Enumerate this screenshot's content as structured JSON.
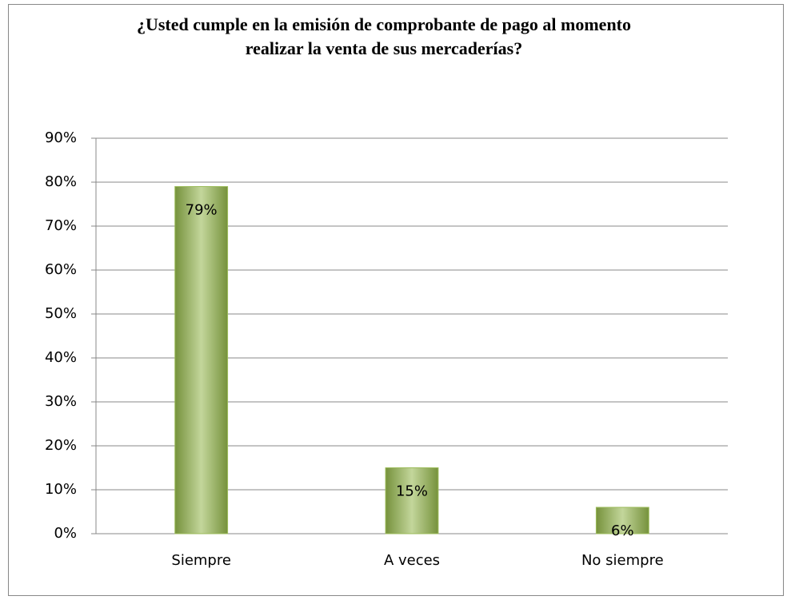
{
  "chart_data": {
    "type": "bar",
    "title": "¿Usted cumple en la emisión de comprobante de pago al momento realizar la venta de sus mercaderías?",
    "categories": [
      "Siempre",
      "A veces",
      "No siempre"
    ],
    "values": [
      79,
      15,
      6
    ],
    "value_labels": [
      "79%",
      "15%",
      "6%"
    ],
    "color": "#9bbb59",
    "ylim": [
      0,
      90
    ],
    "yticks": [
      {
        "value": 0,
        "label": "0%"
      },
      {
        "value": 10,
        "label": "10%"
      },
      {
        "value": 20,
        "label": "20%"
      },
      {
        "value": 30,
        "label": "30%"
      },
      {
        "value": 40,
        "label": "40%"
      },
      {
        "value": 50,
        "label": "50%"
      },
      {
        "value": 60,
        "label": "60%"
      },
      {
        "value": 70,
        "label": "70%"
      },
      {
        "value": 80,
        "label": "80%"
      },
      {
        "value": 90,
        "label": "90%"
      }
    ],
    "grid": true
  }
}
